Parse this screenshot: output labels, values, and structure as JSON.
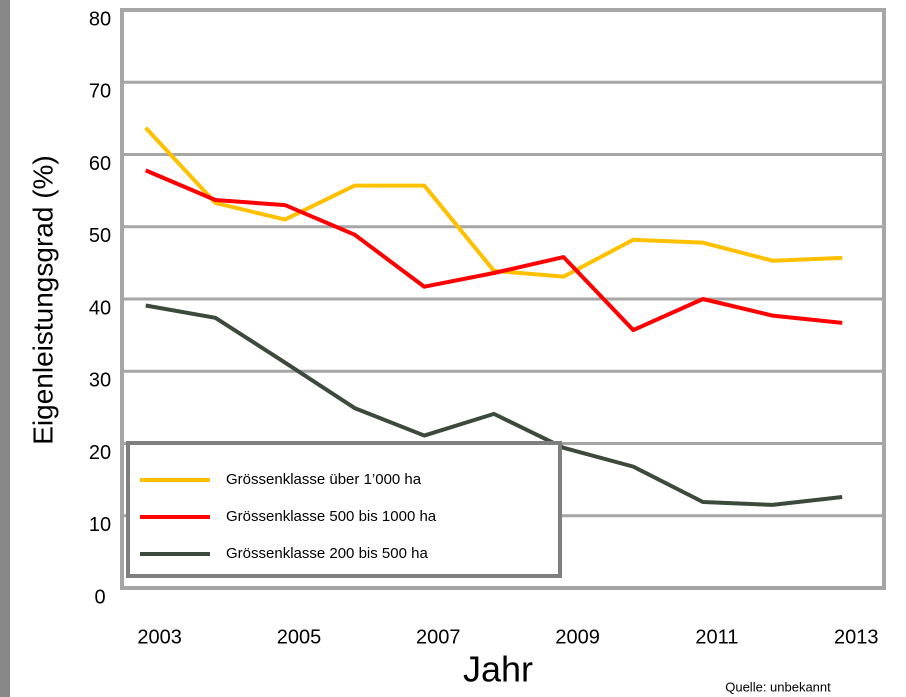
{
  "chart_data": {
    "type": "line",
    "y_label": "Eigenleistungsgrad (%)",
    "x_label": "Jahr",
    "source": "Quelle: unbekannt",
    "x": [
      2003,
      2004,
      2005,
      2006,
      2007,
      2008,
      2009,
      2010,
      2011,
      2012,
      2013
    ],
    "xlim": [
      2002.66,
      2013.6
    ],
    "xticks": [
      2003,
      2005,
      2007,
      2009,
      2011,
      2013
    ],
    "ylim": [
      0,
      80
    ],
    "yticks": [
      0,
      10,
      20,
      30,
      40,
      50,
      60,
      70,
      80
    ],
    "grid": true,
    "legend": "bottom-left",
    "series": [
      {
        "name": "Grössenklasse über  1’000 ha",
        "color": "#ffc000",
        "values": [
          63.7,
          53.3,
          51,
          55.7,
          55.7,
          43.9,
          43.1,
          48.2,
          47.8,
          45.3,
          45.7
        ]
      },
      {
        "name": "Grössenklasse 500 bis 1000 ha",
        "color": "#ff0000",
        "values": [
          57.8,
          53.7,
          53,
          48.9,
          41.7,
          43.6,
          45.8,
          35.7,
          40,
          37.7,
          36.7
        ]
      },
      {
        "name": "Grössenklasse 200 bis 500 ha",
        "color": "#3b4a3b",
        "values": [
          39.1,
          37.4,
          31.2,
          24.9,
          21.1,
          24.1,
          19.4,
          16.8,
          11.9,
          11.5,
          12.6
        ]
      }
    ]
  }
}
